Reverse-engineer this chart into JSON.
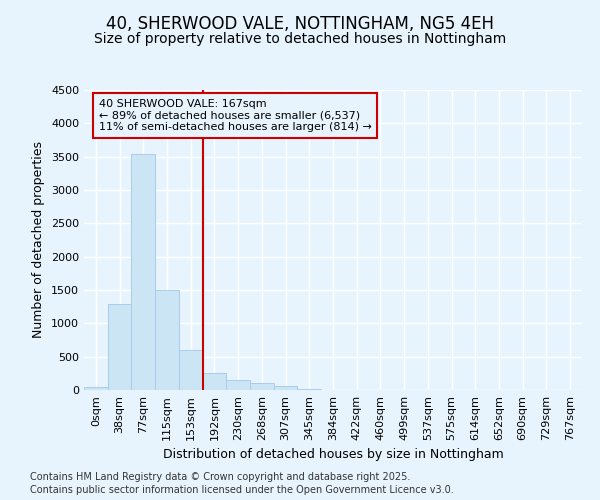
{
  "title_line1": "40, SHERWOOD VALE, NOTTINGHAM, NG5 4EH",
  "title_line2": "Size of property relative to detached houses in Nottingham",
  "xlabel": "Distribution of detached houses by size in Nottingham",
  "ylabel": "Number of detached properties",
  "bar_color": "#cce5f5",
  "bar_edge_color": "#aaccee",
  "background_color": "#e8f4fd",
  "grid_color": "#ffffff",
  "annotation_text": "40 SHERWOOD VALE: 167sqm\n← 89% of detached houses are smaller (6,537)\n11% of semi-detached houses are larger (814) →",
  "annotation_box_color": "#cc0000",
  "vline_color": "#cc0000",
  "vline_x": 4.5,
  "categories": [
    "0sqm",
    "38sqm",
    "77sqm",
    "115sqm",
    "153sqm",
    "192sqm",
    "230sqm",
    "268sqm",
    "307sqm",
    "345sqm",
    "384sqm",
    "422sqm",
    "460sqm",
    "499sqm",
    "537sqm",
    "575sqm",
    "614sqm",
    "652sqm",
    "690sqm",
    "729sqm",
    "767sqm"
  ],
  "values": [
    50,
    1290,
    3540,
    1500,
    600,
    250,
    145,
    100,
    55,
    8,
    3,
    0,
    0,
    0,
    0,
    0,
    0,
    0,
    0,
    0,
    0
  ],
  "ylim": [
    0,
    4500
  ],
  "yticks": [
    0,
    500,
    1000,
    1500,
    2000,
    2500,
    3000,
    3500,
    4000,
    4500
  ],
  "footer_line1": "Contains HM Land Registry data © Crown copyright and database right 2025.",
  "footer_line2": "Contains public sector information licensed under the Open Government Licence v3.0.",
  "title_fontsize": 12,
  "subtitle_fontsize": 10,
  "axis_label_fontsize": 9,
  "tick_fontsize": 8,
  "footer_fontsize": 7,
  "ann_fontsize": 8
}
